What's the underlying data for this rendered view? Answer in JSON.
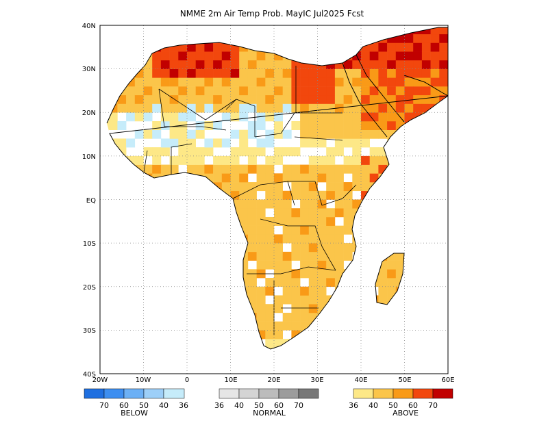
{
  "title": "NMME 2m Air Temp Prob. MayIC  Jul2025 Fcst",
  "axes": {
    "lat_labels": [
      "40N",
      "30N",
      "20N",
      "10N",
      "EQ",
      "10S",
      "20S",
      "30S",
      "40S"
    ],
    "lon_labels": [
      "20W",
      "10W",
      "0",
      "10E",
      "20E",
      "30E",
      "40E",
      "50E",
      "60E"
    ],
    "lat_range": [
      -40,
      40
    ],
    "lon_range": [
      -20,
      60
    ],
    "grid": "dotted"
  },
  "colors": {
    "below": [
      "#1f6fe0",
      "#3d8ef0",
      "#6cb0f5",
      "#9dcff8",
      "#c6ecfa"
    ],
    "normal": [
      "#e6e6e6",
      "#d4d4d4",
      "#bcbcbc",
      "#9c9c9c",
      "#787878"
    ],
    "above": [
      "#fde887",
      "#fbc54a",
      "#f99a17",
      "#f2470d",
      "#c10000"
    ]
  },
  "legend": {
    "below": {
      "title": "BELOW",
      "labels": [
        "70",
        "60",
        "50",
        "40",
        "36"
      ]
    },
    "normal": {
      "title": "NORMAL",
      "labels": [
        "36",
        "40",
        "50",
        "60",
        "70"
      ]
    },
    "above": {
      "title": "ABOVE",
      "labels": [
        "36",
        "40",
        "50",
        "60",
        "70"
      ]
    }
  }
}
